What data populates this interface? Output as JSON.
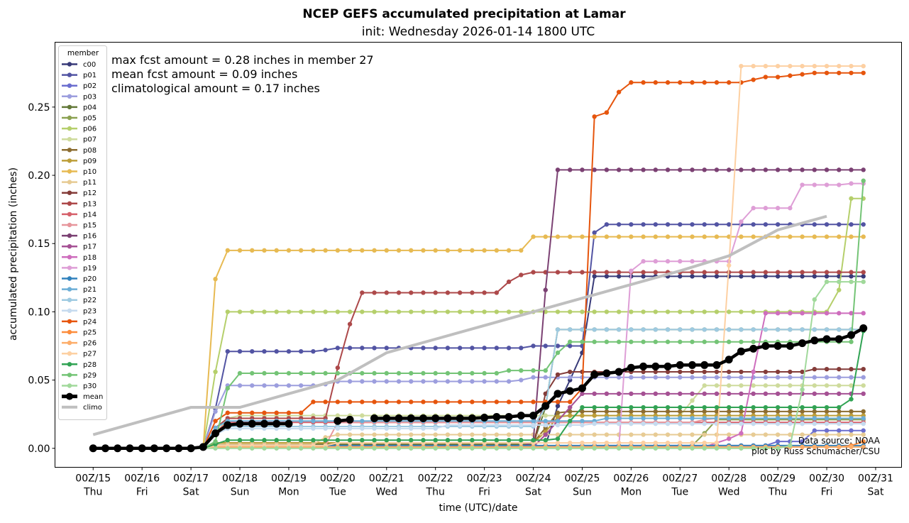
{
  "chart_data": {
    "type": "line",
    "title": "NCEP GEFS accumulated precipitation at Lamar",
    "subtitle": "init: Wednesday 2026-01-14 1800 UTC",
    "xlabel": "time (UTC)/date",
    "ylabel": "accumulated precipitation (inches)",
    "x_units": "6-hour steps from 00Z/15",
    "xlim_days_from_00Z15": [
      -0.78,
      16.53
    ],
    "ylim": [
      -0.0139,
      0.2975
    ],
    "yticks": [
      "0.00",
      "0.05",
      "0.10",
      "0.15",
      "0.20",
      "0.25"
    ],
    "ytick_values": [
      0,
      0.05,
      0.1,
      0.15,
      0.2,
      0.25
    ],
    "xticks": [
      {
        "label": "00Z/15",
        "day": "Thu"
      },
      {
        "label": "00Z/16",
        "day": "Fri"
      },
      {
        "label": "00Z/17",
        "day": "Sat"
      },
      {
        "label": "00Z/18",
        "day": "Sun"
      },
      {
        "label": "00Z/19",
        "day": "Mon"
      },
      {
        "label": "00Z/20",
        "day": "Tue"
      },
      {
        "label": "00Z/21",
        "day": "Wed"
      },
      {
        "label": "00Z/22",
        "day": "Thu"
      },
      {
        "label": "00Z/23",
        "day": "Fri"
      },
      {
        "label": "00Z/24",
        "day": "Sat"
      },
      {
        "label": "00Z/25",
        "day": "Sun"
      },
      {
        "label": "00Z/26",
        "day": "Mon"
      },
      {
        "label": "00Z/27",
        "day": "Tue"
      },
      {
        "label": "00Z/28",
        "day": "Wed"
      },
      {
        "label": "00Z/29",
        "day": "Thu"
      },
      {
        "label": "00Z/30",
        "day": "Fri"
      },
      {
        "label": "00Z/31",
        "day": "Sat"
      }
    ],
    "n_steps": 64,
    "legend_title": "member",
    "legend_position": "upper-left",
    "annotations": [
      "max fcst amount = 0.28 inches in member 27",
      "mean fcst amount = 0.09 inches",
      "climatological amount = 0.17 inches"
    ],
    "credits": [
      "Data source: NOAA",
      "plot by Russ Schumacher/CSU"
    ],
    "series_note": "members given as [step, value] change points, value held until next change",
    "series": [
      {
        "name": "c00",
        "color": "#393b79",
        "steps": [
          [
            9,
            0.001
          ],
          [
            37,
            0.002
          ],
          [
            38,
            0.031
          ],
          [
            39,
            0.05
          ],
          [
            40,
            0.07
          ],
          [
            41,
            0.126
          ]
        ]
      },
      {
        "name": "p01",
        "color": "#5254a3",
        "steps": [
          [
            10,
            0.029
          ],
          [
            11,
            0.071
          ],
          [
            19,
            0.072
          ],
          [
            20,
            0.0735
          ],
          [
            36,
            0.075
          ],
          [
            41,
            0.158
          ],
          [
            42,
            0.164
          ]
        ]
      },
      {
        "name": "p02",
        "color": "#6b6ecf",
        "steps": [
          [
            9,
            0.001
          ],
          [
            40,
            0.002
          ],
          [
            56,
            0.005
          ],
          [
            59,
            0.013
          ]
        ]
      },
      {
        "name": "p03",
        "color": "#9c9ede",
        "steps": [
          [
            10,
            0.027
          ],
          [
            11,
            0.046
          ],
          [
            19,
            0.047
          ],
          [
            20,
            0.049
          ],
          [
            35,
            0.05
          ],
          [
            36,
            0.052
          ]
        ]
      },
      {
        "name": "p04",
        "color": "#637939",
        "steps": [
          [
            10,
            0.003
          ],
          [
            37,
            0.03
          ],
          [
            38,
            0.087
          ]
        ]
      },
      {
        "name": "p05",
        "color": "#8ca252",
        "steps": [
          [
            10,
            0.001
          ],
          [
            49,
            0.002
          ],
          [
            50,
            0.011
          ],
          [
            51,
            0.021
          ]
        ]
      },
      {
        "name": "p06",
        "color": "#b5cf6b",
        "steps": [
          [
            10,
            0.056
          ],
          [
            11,
            0.1
          ],
          [
            61,
            0.116
          ],
          [
            62,
            0.183
          ]
        ]
      },
      {
        "name": "p07",
        "color": "#cedb9c",
        "steps": [
          [
            10,
            0.01
          ],
          [
            11,
            0.022
          ],
          [
            12,
            0.024
          ],
          [
            49,
            0.035
          ],
          [
            50,
            0.046
          ]
        ]
      },
      {
        "name": "p08",
        "color": "#8c6d31",
        "steps": [
          [
            10,
            0.004
          ],
          [
            37,
            0.015
          ],
          [
            38,
            0.026
          ],
          [
            39,
            0.027
          ]
        ]
      },
      {
        "name": "p09",
        "color": "#bd9e39",
        "steps": [
          [
            10,
            0.004
          ],
          [
            37,
            0.012
          ],
          [
            38,
            0.023
          ],
          [
            39,
            0.024
          ]
        ]
      },
      {
        "name": "p10",
        "color": "#e7ba52",
        "steps": [
          [
            10,
            0.124
          ],
          [
            11,
            0.145
          ],
          [
            36,
            0.155
          ]
        ]
      },
      {
        "name": "p11",
        "color": "#e7cb94",
        "steps": [
          [
            10,
            0.003
          ],
          [
            19,
            0.008
          ],
          [
            20,
            0.01
          ]
        ]
      },
      {
        "name": "p12",
        "color": "#843c39",
        "steps": [
          [
            10,
            0.002
          ],
          [
            37,
            0.04
          ],
          [
            38,
            0.054
          ],
          [
            39,
            0.056
          ],
          [
            59,
            0.058
          ]
        ]
      },
      {
        "name": "p13",
        "color": "#ad494a",
        "steps": [
          [
            10,
            0.015
          ],
          [
            11,
            0.022
          ],
          [
            20,
            0.059
          ],
          [
            21,
            0.091
          ],
          [
            22,
            0.114
          ],
          [
            34,
            0.122
          ],
          [
            35,
            0.127
          ],
          [
            36,
            0.129
          ]
        ]
      },
      {
        "name": "p14",
        "color": "#d6616b",
        "steps": [
          [
            10,
            0.012
          ],
          [
            11,
            0.019
          ]
        ]
      },
      {
        "name": "p15",
        "color": "#e7969c",
        "steps": [
          [
            10,
            0.001
          ],
          [
            18,
            0.002
          ],
          [
            20,
            0.019
          ],
          [
            50,
            0.021
          ],
          [
            51,
            0.022
          ]
        ]
      },
      {
        "name": "p16",
        "color": "#7b4173",
        "steps": [
          [
            9,
            0.001
          ],
          [
            36,
            0.005
          ],
          [
            37,
            0.116
          ],
          [
            38,
            0.204
          ]
        ]
      },
      {
        "name": "p17",
        "color": "#a55194",
        "steps": [
          [
            10,
            0.001
          ],
          [
            37,
            0.01
          ],
          [
            38,
            0.02
          ],
          [
            39,
            0.03
          ],
          [
            40,
            0.04
          ]
        ]
      },
      {
        "name": "p18",
        "color": "#ce6dbd",
        "steps": [
          [
            10,
            0.001
          ],
          [
            51,
            0.004
          ],
          [
            52,
            0.007
          ],
          [
            53,
            0.011
          ],
          [
            54,
            0.056
          ],
          [
            55,
            0.099
          ]
        ]
      },
      {
        "name": "p19",
        "color": "#de9ed6",
        "steps": [
          [
            10,
            0.001
          ],
          [
            44,
            0.13
          ],
          [
            45,
            0.137
          ],
          [
            53,
            0.166
          ],
          [
            54,
            0.176
          ],
          [
            58,
            0.193
          ],
          [
            62,
            0.194
          ]
        ]
      },
      {
        "name": "p20",
        "color": "#3182bd",
        "steps": [
          [
            10,
            0.002
          ]
        ]
      },
      {
        "name": "p21",
        "color": "#6baed6",
        "steps": [
          [
            10,
            0.015
          ],
          [
            11,
            0.02
          ],
          [
            42,
            0.022
          ]
        ]
      },
      {
        "name": "p22",
        "color": "#9ecae1",
        "steps": [
          [
            10,
            0.01
          ],
          [
            11,
            0.016
          ],
          [
            37,
            0.03
          ],
          [
            38,
            0.087
          ]
        ]
      },
      {
        "name": "p23",
        "color": "#c6dbef",
        "steps": [
          [
            10,
            0.01
          ],
          [
            11,
            0.0145
          ],
          [
            29,
            0.017
          ],
          [
            41,
            0.018
          ]
        ]
      },
      {
        "name": "p24",
        "color": "#e6550d",
        "steps": [
          [
            10,
            0.02
          ],
          [
            11,
            0.026
          ],
          [
            18,
            0.034
          ],
          [
            40,
            0.044
          ],
          [
            41,
            0.243
          ],
          [
            42,
            0.246
          ],
          [
            43,
            0.261
          ],
          [
            44,
            0.268
          ],
          [
            54,
            0.27
          ],
          [
            55,
            0.272
          ],
          [
            57,
            0.273
          ],
          [
            58,
            0.274
          ],
          [
            59,
            0.275
          ]
        ]
      },
      {
        "name": "p25",
        "color": "#fd8d3c",
        "steps": [
          [
            10,
            0.001
          ],
          [
            62,
            0.002
          ],
          [
            63,
            0.005
          ]
        ]
      },
      {
        "name": "p26",
        "color": "#fdae6b",
        "steps": [
          [
            10,
            0.001
          ]
        ]
      },
      {
        "name": "p27",
        "color": "#fdd0a2",
        "steps": [
          [
            10,
            0.002
          ],
          [
            20,
            0.004
          ],
          [
            52,
            0.134
          ],
          [
            53,
            0.28
          ]
        ]
      },
      {
        "name": "p28",
        "color": "#31a354",
        "steps": [
          [
            10,
            0.003
          ],
          [
            11,
            0.006
          ],
          [
            38,
            0.007
          ],
          [
            39,
            0.02
          ],
          [
            40,
            0.03
          ],
          [
            62,
            0.036
          ],
          [
            63,
            0.086
          ]
        ]
      },
      {
        "name": "p29",
        "color": "#74c476",
        "steps": [
          [
            10,
            0.005
          ],
          [
            11,
            0.044
          ],
          [
            12,
            0.055
          ],
          [
            34,
            0.057
          ],
          [
            38,
            0.07
          ],
          [
            39,
            0.078
          ],
          [
            63,
            0.196
          ]
        ]
      },
      {
        "name": "p30",
        "color": "#a1d99b",
        "steps": [
          [
            57,
            0.002
          ],
          [
            58,
            0.043
          ],
          [
            59,
            0.109
          ],
          [
            60,
            0.122
          ]
        ]
      }
    ],
    "mean": {
      "name": "mean",
      "color": "#000000",
      "values": [
        0,
        0,
        0,
        0,
        0,
        0,
        0,
        0,
        0,
        0.001,
        0.011,
        0.017,
        0.018,
        0.018,
        0.018,
        0.018,
        0.018,
        null,
        null,
        null,
        0.02,
        0.021,
        null,
        0.022,
        0.022,
        0.022,
        0.022,
        0.022,
        0.022,
        0.022,
        0.022,
        0.022,
        0.0225,
        0.023,
        0.023,
        0.024,
        0.024,
        0.031,
        0.04,
        0.042,
        0.044,
        0.054,
        0.055,
        0.056,
        0.059,
        0.06,
        0.06,
        0.06,
        0.061,
        0.061,
        0.061,
        0.061,
        0.065,
        0.071,
        0.073,
        0.075,
        0.075,
        0.075,
        0.077,
        0.079,
        0.08,
        0.08,
        0.083,
        0.088
      ]
    },
    "climo": {
      "name": "climo",
      "color": "#bfbfbf",
      "daily_values_from_00Z15": [
        0.01,
        0.02,
        0.03,
        0.03,
        0.04,
        0.05,
        0.07,
        0.08,
        0.09,
        0.1,
        0.11,
        0.12,
        0.13,
        0.141,
        0.16,
        0.17
      ]
    }
  }
}
